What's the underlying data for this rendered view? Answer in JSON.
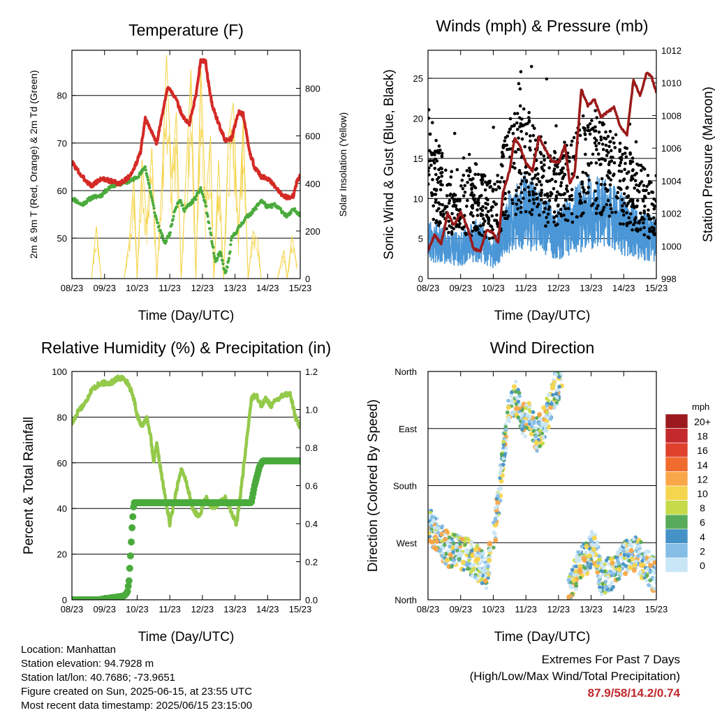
{
  "chart_data": [
    {
      "type": "line",
      "title": "Temperature (F)",
      "xlabel": "Time (Day/UTC)",
      "ylabel": "2m & 9m T (Red, Orange) & 2m Td (Green)",
      "y2label": "Solar Insolation (Yellow)",
      "x_ticks": [
        "08/23",
        "09/23",
        "10/23",
        "11/23",
        "12/23",
        "13/23",
        "14/23",
        "15/23"
      ],
      "ylim": [
        41.5,
        89.5
      ],
      "y_ticks": [
        50,
        60,
        70,
        80
      ],
      "y2lim": [
        0,
        960
      ],
      "y2_ticks": [
        0,
        200,
        400,
        600,
        800
      ],
      "grid": "horizontal",
      "series": [
        {
          "color": "#d42a26",
          "x": [
            0,
            0.3,
            0.6,
            0.9,
            1.2,
            1.45,
            1.7,
            1.9,
            2.1,
            2.25,
            2.4,
            2.6,
            2.8,
            2.95,
            3.05,
            3.2,
            3.4,
            3.6,
            3.8,
            3.95,
            4.1,
            4.2,
            4.3,
            4.5,
            4.7,
            4.9,
            5.1,
            5.25,
            5.35,
            5.45,
            5.6,
            5.8,
            6.0,
            6.2,
            6.4,
            6.6,
            6.8,
            6.9,
            7.0
          ],
          "values": [
            66,
            63,
            61,
            62.5,
            62,
            61.5,
            62.5,
            64.5,
            68,
            75,
            73,
            70,
            77,
            82,
            81,
            79,
            75.5,
            74,
            80,
            87.5,
            87,
            82,
            78,
            74,
            70.5,
            71,
            76.5,
            76,
            72,
            68,
            65,
            63,
            62.5,
            61,
            59.5,
            58.5,
            59,
            62,
            63
          ]
        },
        {
          "color": "#4aab3c",
          "x": [
            0,
            0.3,
            0.6,
            0.9,
            1.2,
            1.5,
            1.8,
            2.1,
            2.25,
            2.4,
            2.55,
            2.7,
            2.85,
            3.0,
            3.15,
            3.3,
            3.45,
            3.6,
            3.8,
            3.95,
            4.1,
            4.25,
            4.4,
            4.55,
            4.7,
            4.8,
            4.9,
            5.1,
            5.3,
            5.6,
            5.8,
            6.0,
            6.2,
            6.4,
            6.6,
            6.8,
            7.0
          ],
          "values": [
            58.5,
            57,
            58.5,
            59,
            61,
            61.5,
            62,
            63.5,
            65,
            60,
            55,
            51.5,
            49,
            51,
            56,
            58,
            56,
            57,
            58.5,
            60.5,
            57,
            51,
            45,
            47,
            42.5,
            45,
            50,
            52,
            54,
            56,
            58,
            56.5,
            57,
            56,
            54.5,
            56,
            55
          ]
        },
        {
          "color": "#f5d44a",
          "x": [
            0.6,
            0.75,
            0.9,
            1.6,
            1.75,
            1.9,
            2.0,
            2.15,
            2.3,
            2.45,
            2.6,
            2.75,
            2.9,
            3.05,
            3.2,
            3.35,
            3.5,
            3.65,
            3.8,
            3.95,
            4.1,
            4.25,
            4.35,
            4.5,
            4.65,
            4.8,
            4.95,
            5.1,
            5.25,
            5.4,
            5.55,
            5.7,
            5.8,
            5.95,
            6.1,
            6.3,
            6.5,
            6.6,
            6.75,
            6.9
          ],
          "values": [
            0,
            220,
            0,
            0,
            150,
            420,
            0,
            500,
            230,
            550,
            0,
            380,
            940,
            420,
            700,
            0,
            450,
            880,
            0,
            900,
            300,
            600,
            0,
            500,
            0,
            600,
            740,
            180,
            670,
            0,
            200,
            160,
            0,
            0,
            0,
            0,
            120,
            0,
            180,
            50
          ]
        }
      ]
    },
    {
      "type": "scatter",
      "title": "Winds (mph) & Pressure (mb)",
      "xlabel": "Time (Day/UTC)",
      "ylabel": "Sonic Wind & Gust (Blue, Black)",
      "y2label": "Station Pressure (Maroon)",
      "x_ticks": [
        "08/23",
        "09/23",
        "10/23",
        "11/23",
        "12/23",
        "13/23",
        "14/23",
        "15/23"
      ],
      "ylim": [
        0,
        28.5
      ],
      "y_ticks": [
        0,
        5,
        10,
        15,
        20,
        25
      ],
      "y2lim": [
        998,
        1012
      ],
      "y2_ticks": [
        998,
        1000,
        1002,
        1004,
        1006,
        1008,
        1010,
        1012
      ],
      "grid": "horizontal",
      "series": [
        {
          "color": "#4a96d6",
          "x": [
            0,
            0.5,
            1,
            1.5,
            2,
            2.5,
            3,
            3.5,
            4,
            4.5,
            5,
            5.5,
            6,
            6.5,
            7
          ],
          "values": [
            4,
            3.5,
            3,
            4,
            2.5,
            6,
            7,
            5.5,
            4.5,
            6,
            7,
            6.5,
            5.5,
            4.5,
            4
          ]
        },
        {
          "color": "#000000",
          "x": [
            0,
            0.5,
            1,
            1.5,
            2,
            2.5,
            3,
            3.5,
            4,
            4.5,
            5,
            5.5,
            6,
            6.5,
            7
          ],
          "values": [
            15,
            10,
            9,
            10,
            8,
            14,
            15,
            12,
            11,
            13,
            15,
            13,
            12,
            10,
            8
          ]
        },
        {
          "color": "#9b1a1a",
          "x": [
            0,
            0.2,
            0.4,
            0.6,
            0.8,
            1.0,
            1.2,
            1.4,
            1.6,
            1.8,
            2.0,
            2.15,
            2.3,
            2.5,
            2.65,
            2.8,
            3.0,
            3.2,
            3.4,
            3.6,
            3.8,
            4.0,
            4.2,
            4.35,
            4.5,
            4.7,
            4.9,
            5.1,
            5.3,
            5.5,
            5.7,
            5.9,
            6.1,
            6.3,
            6.5,
            6.7,
            6.85,
            7.0
          ],
          "values": [
            999.7,
            1000.7,
            1000.1,
            1002.0,
            1001.3,
            1002.1,
            1001.2,
            999.8,
            999.7,
            1001.0,
            1000.8,
            1000.2,
            1003.3,
            1004.6,
            1006.6,
            1006.2,
            1005.1,
            1004.6,
            1006.7,
            1005.9,
            1005.2,
            1005.1,
            1006.2,
            1003.8,
            1004.5,
            1009.6,
            1008.6,
            1009.0,
            1007.9,
            1008.2,
            1008.5,
            1007.3,
            1006.8,
            1010.2,
            1009.2,
            1010.6,
            1010.4,
            1009.4
          ]
        }
      ]
    },
    {
      "type": "line",
      "title": "Relative Humidity (%) & Precipitation (in)",
      "xlabel": "Time (Day/UTC)",
      "ylabel": "Percent & Total Rainfall",
      "x_ticks": [
        "08/23",
        "09/23",
        "10/23",
        "11/23",
        "12/23",
        "13/23",
        "14/23",
        "15/23"
      ],
      "ylim": [
        0,
        100
      ],
      "y_ticks": [
        0,
        20,
        40,
        60,
        80,
        100
      ],
      "y2lim": [
        0,
        1.2
      ],
      "y2_ticks": [
        "0.0",
        "0.2",
        "0.4",
        "0.6",
        "0.8",
        "1.0",
        "1.2"
      ],
      "grid": "horizontal",
      "series": [
        {
          "color": "#94c94a",
          "x": [
            0,
            0.2,
            0.4,
            0.6,
            0.8,
            1.0,
            1.2,
            1.4,
            1.6,
            1.75,
            1.9,
            2.0,
            2.15,
            2.3,
            2.4,
            2.5,
            2.6,
            2.8,
            3.0,
            3.2,
            3.35,
            3.5,
            3.7,
            3.9,
            4.1,
            4.3,
            4.5,
            4.7,
            4.9,
            5.05,
            5.2,
            5.4,
            5.5,
            5.65,
            5.8,
            5.95,
            6.1,
            6.3,
            6.5,
            6.7,
            6.85,
            7.0
          ],
          "values": [
            77,
            83,
            86,
            92,
            94,
            95,
            95,
            97,
            97,
            94,
            88,
            81,
            76,
            80,
            73,
            60,
            68,
            50,
            33,
            48,
            57,
            52,
            40,
            36,
            45,
            40,
            42,
            45,
            38,
            33,
            50,
            75,
            88,
            90,
            85,
            88,
            85,
            88,
            90,
            90,
            80,
            75
          ]
        },
        {
          "color": "#4aab3c",
          "x": [
            0,
            0.8,
            1.6,
            1.7,
            1.75,
            1.8,
            1.85,
            1.9,
            2.0,
            3.0,
            4.0,
            5.0,
            5.5,
            5.6,
            5.75,
            5.85,
            6.0,
            7.0
          ],
          "values": [
            0,
            0,
            0.02,
            0.04,
            0.1,
            0.24,
            0.4,
            0.51,
            0.51,
            0.51,
            0.51,
            0.51,
            0.51,
            0.6,
            0.7,
            0.73,
            0.73,
            0.73
          ]
        }
      ]
    },
    {
      "type": "scatter",
      "title": "Wind Direction",
      "xlabel": "Time (Day/UTC)",
      "ylabel": "Direction (Colored By Speed)",
      "x_ticks": [
        "08/23",
        "09/23",
        "10/23",
        "11/23",
        "12/23",
        "13/23",
        "14/23",
        "15/23"
      ],
      "y_ticks": [
        "North",
        "East",
        "South",
        "West",
        "North"
      ],
      "ylim": [
        0,
        360
      ],
      "grid": "horizontal",
      "colorbar": {
        "unit": "mph",
        "labels": [
          "20+",
          "18",
          "16",
          "14",
          "12",
          "10",
          "8",
          "6",
          "4",
          "2",
          "0"
        ],
        "colors": [
          "#9b1a1f",
          "#c3292d",
          "#e0412c",
          "#f06b2e",
          "#f9a748",
          "#f5d54e",
          "#c6db4a",
          "#57ab5a",
          "#4592c7",
          "#84bde6",
          "#c9e6f7"
        ]
      },
      "series": [
        {
          "name": "",
          "x": [
            0,
            0.3,
            0.6,
            0.9,
            1.2,
            1.5,
            1.8,
            2.1,
            2.2,
            2.3,
            2.5,
            2.7,
            2.9,
            3.1,
            3.3,
            3.5,
            3.7,
            3.9,
            4.1,
            4.3,
            4.5,
            4.7,
            4.9,
            5.1,
            5.3,
            5.5,
            5.7,
            5.9,
            6.1,
            6.3,
            6.5,
            6.7,
            6.9
          ],
          "values": [
            120,
            100,
            80,
            75,
            70,
            60,
            40,
            130,
            170,
            230,
            300,
            320,
            280,
            285,
            260,
            270,
            300,
            330,
            350,
            5,
            40,
            60,
            70,
            90,
            35,
            40,
            45,
            60,
            70,
            75,
            65,
            55,
            40
          ]
        }
      ]
    }
  ],
  "info": {
    "location": "Location: Manhattan",
    "elevation": "Station elevation: 94.7928 m",
    "latlon": "Station lat/lon: 40.7686; -73.9651",
    "created": "Figure created on Sun, 2025-06-15, at 23:55 UTC",
    "recent": "Most recent data timestamp: 2025/06/15 23:15:00"
  },
  "extremes": {
    "title": "Extremes For Past 7 Days",
    "subtitle": "(High/Low/Max Wind/Total Precipitation)",
    "values": "87.9/58/14.2/0.74"
  }
}
